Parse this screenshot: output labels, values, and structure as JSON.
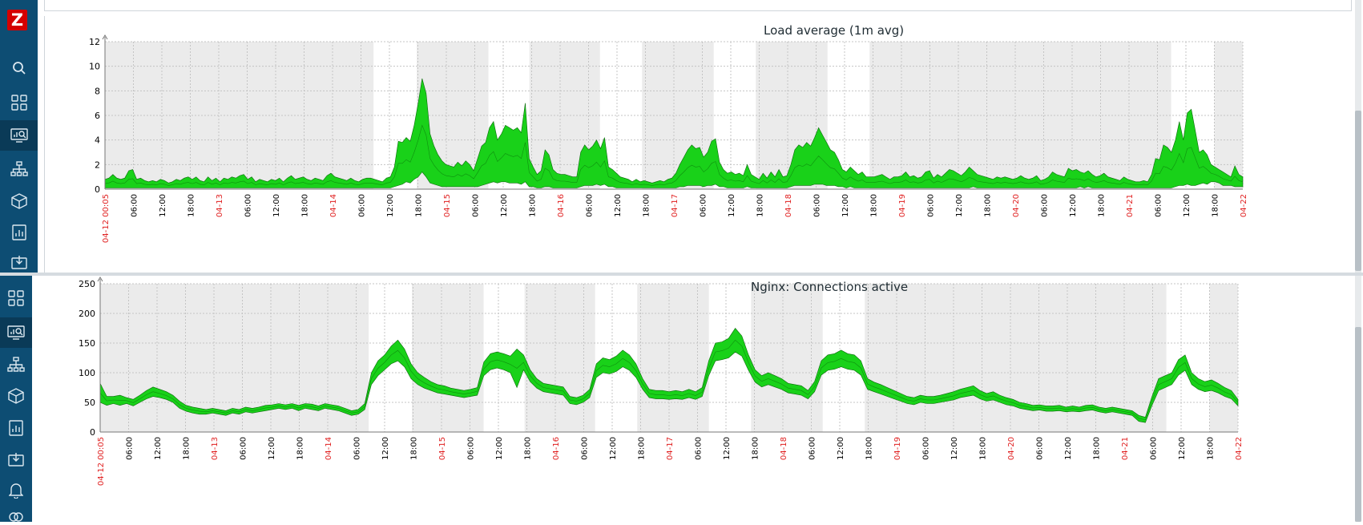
{
  "app": {
    "logo_text": "Z"
  },
  "sidebar_top": {
    "icons": [
      "search-icon",
      "dashboard-icon",
      "monitoring-icon",
      "network-map-icon",
      "inventory-icon",
      "reports-icon",
      "data-collection-icon"
    ]
  },
  "sidebar_bottom": {
    "icons": [
      "dashboard-icon",
      "monitoring-icon",
      "network-map-icon",
      "inventory-icon",
      "reports-icon",
      "data-collection-icon",
      "alerts-icon",
      "integrations-icon"
    ]
  },
  "colors": {
    "sidebar": "#0d4d73",
    "sidebar_active": "#0a3a57",
    "logo": "#d40000",
    "area_fill": "#19d119",
    "area_stroke": "#0a6b0a",
    "night_band": "#ebebeb",
    "date_label": "#e02020"
  },
  "chart_data": [
    {
      "type": "area",
      "title": "Load average (1m avg)",
      "ylim": [
        0,
        12
      ],
      "y_ticks": [
        "0",
        "2",
        "4",
        "6",
        "8",
        "10",
        "12"
      ],
      "x_ticks": [
        "04-12 00:05",
        "06:00",
        "12:00",
        "18:00",
        "04-13",
        "06:00",
        "12:00",
        "18:00",
        "04-14",
        "06:00",
        "12:00",
        "18:00",
        "04-15",
        "06:00",
        "12:00",
        "18:00",
        "04-16",
        "06:00",
        "12:00",
        "18:00",
        "04-17",
        "06:00",
        "12:00",
        "18:00",
        "04-18",
        "06:00",
        "12:00",
        "18:00",
        "04-19",
        "06:00",
        "12:00",
        "18:00",
        "04-20",
        "06:00",
        "12:00",
        "18:00",
        "04-21",
        "06:00",
        "12:00",
        "18:00",
        "04-22"
      ],
      "grid": true,
      "series": [
        {
          "upper": [
            0.8,
            0.9,
            1.2,
            0.9,
            0.8,
            0.9,
            1.5,
            1.6,
            0.8,
            0.9,
            0.7,
            0.6,
            0.7,
            0.6,
            0.8,
            0.7,
            0.5,
            0.6,
            0.8,
            0.7,
            0.9,
            1.0,
            0.8,
            1.0,
            0.7,
            0.6,
            1.0,
            0.7,
            0.9,
            0.6,
            0.9,
            0.8,
            1.0,
            0.9,
            1.1,
            1.2,
            0.8,
            1.0,
            0.6,
            0.8,
            0.7,
            0.6,
            0.8,
            0.7,
            0.9,
            0.6,
            0.9,
            1.1,
            0.8,
            0.9,
            1.0,
            0.8,
            0.7,
            0.9,
            0.8,
            0.7,
            1.1,
            1.3,
            1.0,
            0.9,
            0.8,
            0.7,
            0.9,
            0.7,
            0.6,
            0.8,
            0.9,
            0.9,
            0.8,
            0.7,
            0.6,
            0.9,
            1.0,
            1.8,
            3.9,
            3.8,
            4.2,
            3.9,
            5.2,
            7.0,
            9.0,
            7.8,
            4.5,
            3.5,
            2.8,
            2.3,
            2.0,
            1.9,
            1.8,
            2.2,
            1.9,
            2.3,
            2.0,
            1.5,
            2.5,
            3.5,
            3.8,
            5.0,
            5.5,
            4.0,
            4.5,
            5.2,
            5.0,
            4.8,
            5.0,
            4.6,
            7.0,
            2.5,
            1.8,
            1.2,
            1.5,
            3.2,
            2.8,
            1.6,
            1.3,
            1.2,
            1.2,
            1.1,
            1.0,
            1.0,
            3.0,
            3.6,
            3.2,
            3.5,
            4.0,
            3.3,
            4.2,
            1.8,
            1.6,
            1.3,
            1.0,
            0.9,
            0.8,
            0.6,
            0.8,
            0.6,
            0.7,
            0.6,
            0.5,
            0.6,
            0.7,
            0.6,
            0.8,
            0.9,
            1.3,
            2.0,
            2.6,
            3.2,
            3.6,
            3.3,
            3.4,
            2.6,
            3.0,
            3.9,
            4.1,
            2.2,
            1.6,
            1.3,
            1.4,
            1.2,
            1.3,
            1.1,
            2.0,
            1.2,
            1.0,
            0.8,
            1.3,
            0.9,
            1.4,
            1.0,
            1.6,
            1.0,
            1.1,
            2.0,
            3.2,
            3.6,
            3.4,
            3.8,
            3.5,
            4.2,
            5.0,
            4.4,
            3.8,
            3.2,
            3.0,
            2.4,
            1.6,
            1.4,
            1.8,
            1.5,
            1.2,
            1.4,
            1.0,
            1.0,
            1.0,
            1.1,
            1.2,
            1.0,
            0.8,
            1.0,
            1.0,
            1.1,
            1.4,
            1.0,
            1.1,
            0.9,
            1.0,
            1.4,
            1.5,
            0.9,
            1.2,
            1.0,
            1.3,
            1.6,
            1.5,
            1.3,
            1.1,
            1.4,
            1.8,
            1.5,
            1.2,
            1.1,
            1.0,
            0.9,
            0.8,
            1.0,
            0.9,
            1.0,
            0.9,
            0.8,
            0.9,
            1.1,
            0.9,
            0.8,
            0.9,
            1.1,
            0.7,
            0.8,
            1.0,
            1.4,
            1.2,
            1.1,
            1.0,
            1.7,
            1.5,
            1.6,
            1.4,
            1.3,
            1.5,
            1.2,
            1.0,
            1.1,
            1.3,
            1.0,
            0.9,
            0.8,
            0.7,
            1.0,
            0.8,
            0.7,
            0.6,
            0.6,
            0.7,
            0.6,
            1.2,
            2.5,
            2.4,
            3.6,
            3.4,
            3.0,
            4.0,
            5.5,
            4.0,
            6.2,
            6.5,
            4.8,
            3.0,
            3.2,
            2.8,
            2.0,
            1.8,
            1.6,
            1.4,
            1.2,
            1.0,
            1.9,
            1.2,
            1.0
          ]
        },
        {
          "lower": [
            0.1,
            0.1,
            0.1,
            0.1,
            0.1,
            0.1,
            0.1,
            0.1,
            0.1,
            0.1,
            0.1,
            0.1,
            0.1,
            0.1,
            0.1,
            0.1,
            0.1,
            0.1,
            0.1,
            0.1,
            0.1,
            0.1,
            0.1,
            0.1,
            0.1,
            0.1,
            0.1,
            0.1,
            0.1,
            0.1,
            0.1,
            0.1,
            0.1,
            0.1,
            0.1,
            0.1,
            0.1,
            0.1,
            0.1,
            0.1,
            0.1,
            0.1,
            0.1,
            0.1,
            0.1,
            0.1,
            0.1,
            0.1,
            0.1,
            0.1,
            0.1,
            0.1,
            0.1,
            0.1,
            0.1,
            0.1,
            0.1,
            0.1,
            0.1,
            0.1,
            0.1,
            0.1,
            0.1,
            0.1,
            0.1,
            0.1,
            0.1,
            0.1,
            0.1,
            0.1,
            0.1,
            0.1,
            0.1,
            0.2,
            0.3,
            0.4,
            0.6,
            0.5,
            0.8,
            1.0,
            1.4,
            1.0,
            0.5,
            0.4,
            0.3,
            0.2,
            0.2,
            0.2,
            0.2,
            0.2,
            0.2,
            0.2,
            0.2,
            0.2,
            0.2,
            0.3,
            0.4,
            0.5,
            0.6,
            0.5,
            0.6,
            0.6,
            0.5,
            0.5,
            0.5,
            0.4,
            0.6,
            0.2,
            0.2,
            0.1,
            0.1,
            0.2,
            0.2,
            0.1,
            0.1,
            0.1,
            0.1,
            0.1,
            0.1,
            0.1,
            0.2,
            0.3,
            0.3,
            0.3,
            0.4,
            0.3,
            0.4,
            0.2,
            0.2,
            0.1,
            0.1,
            0.1,
            0.1,
            0.1,
            0.1,
            0.1,
            0.1,
            0.1,
            0.1,
            0.1,
            0.1,
            0.1,
            0.1,
            0.1,
            0.1,
            0.2,
            0.2,
            0.3,
            0.3,
            0.3,
            0.3,
            0.2,
            0.3,
            0.3,
            0.4,
            0.2,
            0.2,
            0.1,
            0.1,
            0.1,
            0.1,
            0.1,
            0.2,
            0.1,
            0.1,
            0.1,
            0.1,
            0.1,
            0.1,
            0.1,
            0.1,
            0.1,
            0.1,
            0.2,
            0.3,
            0.3,
            0.3,
            0.3,
            0.3,
            0.4,
            0.4,
            0.4,
            0.3,
            0.3,
            0.3,
            0.2,
            0.2,
            0.1,
            0.2,
            0.1,
            0.1,
            0.1,
            0.1,
            0.1,
            0.1,
            0.1,
            0.1,
            0.1,
            0.1,
            0.1,
            0.1,
            0.1,
            0.1,
            0.1,
            0.1,
            0.1,
            0.1,
            0.1,
            0.1,
            0.1,
            0.1,
            0.1,
            0.1,
            0.1,
            0.1,
            0.1,
            0.1,
            0.1,
            0.1,
            0.2,
            0.1,
            0.1,
            0.1,
            0.1,
            0.1,
            0.1,
            0.1,
            0.1,
            0.1,
            0.1,
            0.1,
            0.1,
            0.1,
            0.1,
            0.1,
            0.1,
            0.1,
            0.1,
            0.1,
            0.1,
            0.1,
            0.1,
            0.1,
            0.1,
            0.1,
            0.1,
            0.2,
            0.1,
            0.2,
            0.1,
            0.1,
            0.1,
            0.1,
            0.1,
            0.1,
            0.1,
            0.1,
            0.1,
            0.1,
            0.1,
            0.1,
            0.1,
            0.1,
            0.1,
            0.1,
            0.1,
            0.1,
            0.1,
            0.1,
            0.1,
            0.2,
            0.3,
            0.3,
            0.4,
            0.3,
            0.3,
            0.4,
            0.5,
            0.4,
            0.6,
            0.6,
            0.5,
            0.3,
            0.3,
            0.3,
            0.2,
            0.2,
            0.2,
            0.1,
            0.1,
            0.1,
            0.2,
            0.1,
            0.1
          ]
        }
      ]
    },
    {
      "type": "area",
      "title": "Nginx: Connections active",
      "ylim": [
        0,
        250
      ],
      "y_ticks": [
        "0",
        "50",
        "100",
        "150",
        "200",
        "250"
      ],
      "x_ticks": [
        "04-12 00:05",
        "06:00",
        "12:00",
        "18:00",
        "04-13",
        "06:00",
        "12:00",
        "18:00",
        "04-14",
        "06:00",
        "12:00",
        "18:00",
        "04-15",
        "06:00",
        "12:00",
        "18:00",
        "04-16",
        "06:00",
        "12:00",
        "18:00",
        "04-17",
        "06:00",
        "12:00",
        "18:00",
        "04-18",
        "06:00",
        "12:00",
        "18:00",
        "04-19",
        "06:00",
        "12:00",
        "18:00",
        "04-20",
        "06:00",
        "12:00",
        "18:00",
        "04-21",
        "06:00",
        "12:00",
        "18:00",
        "04-22"
      ],
      "grid": true,
      "series": [
        {
          "upper": [
            82,
            60,
            60,
            62,
            58,
            55,
            62,
            70,
            76,
            72,
            68,
            62,
            52,
            45,
            42,
            40,
            38,
            40,
            38,
            36,
            40,
            38,
            42,
            40,
            42,
            45,
            46,
            48,
            46,
            48,
            45,
            48,
            47,
            44,
            48,
            46,
            44,
            40,
            36,
            38,
            48,
            100,
            120,
            130,
            145,
            155,
            140,
            115,
            100,
            92,
            85,
            80,
            78,
            74,
            72,
            70,
            72,
            75,
            118,
            132,
            135,
            132,
            128,
            140,
            130,
            105,
            90,
            82,
            80,
            78,
            76,
            60,
            58,
            62,
            72,
            115,
            125,
            122,
            128,
            138,
            130,
            115,
            90,
            72,
            70,
            70,
            68,
            70,
            68,
            72,
            68,
            75,
            120,
            150,
            152,
            158,
            175,
            162,
            130,
            105,
            95,
            100,
            95,
            90,
            82,
            80,
            78,
            70,
            85,
            120,
            130,
            132,
            138,
            132,
            130,
            120,
            90,
            84,
            80,
            75,
            70,
            65,
            60,
            58,
            62,
            60,
            60,
            62,
            65,
            68,
            72,
            75,
            78,
            70,
            65,
            68,
            62,
            58,
            55,
            50,
            48,
            45,
            46,
            44,
            44,
            45,
            42,
            44,
            42,
            45,
            46,
            42,
            40,
            42,
            40,
            38,
            36,
            28,
            25,
            60,
            90,
            95,
            100,
            122,
            130,
            100,
            90,
            85,
            88,
            82,
            75,
            70,
            55
          ]
        },
        {
          "lower": [
            50,
            45,
            48,
            45,
            48,
            44,
            50,
            56,
            60,
            58,
            55,
            50,
            40,
            35,
            32,
            30,
            30,
            32,
            30,
            28,
            32,
            30,
            34,
            32,
            34,
            36,
            38,
            40,
            38,
            40,
            36,
            40,
            38,
            36,
            40,
            38,
            36,
            32,
            28,
            30,
            38,
            80,
            95,
            105,
            115,
            120,
            110,
            90,
            80,
            74,
            70,
            66,
            64,
            62,
            60,
            58,
            60,
            62,
            95,
            105,
            108,
            105,
            100,
            75,
            105,
            85,
            74,
            68,
            66,
            64,
            62,
            48,
            46,
            50,
            58,
            92,
            100,
            98,
            102,
            110,
            104,
            92,
            72,
            58,
            56,
            56,
            55,
            56,
            55,
            58,
            55,
            60,
            95,
            120,
            122,
            125,
            135,
            128,
            104,
            84,
            76,
            80,
            76,
            72,
            66,
            64,
            62,
            56,
            68,
            96,
            104,
            106,
            110,
            106,
            104,
            96,
            72,
            68,
            64,
            60,
            56,
            52,
            48,
            46,
            50,
            48,
            48,
            50,
            52,
            54,
            58,
            60,
            62,
            56,
            52,
            54,
            50,
            46,
            44,
            40,
            38,
            36,
            37,
            35,
            35,
            36,
            34,
            35,
            34,
            36,
            37,
            34,
            32,
            34,
            32,
            30,
            28,
            18,
            16,
            45,
            70,
            75,
            80,
            96,
            104,
            80,
            72,
            68,
            70,
            66,
            60,
            56,
            44
          ]
        }
      ]
    }
  ]
}
